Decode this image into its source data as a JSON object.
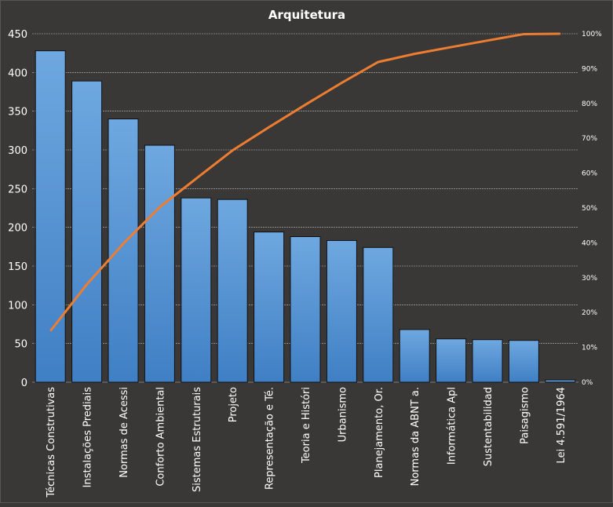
{
  "chart_data": {
    "type": "bar",
    "title": "Arquitetura",
    "categories": [
      "Técnicas Construtivas",
      "Instalações Prediais",
      "Normas de Acessi",
      "Conforto Ambiental",
      "Sistemas Estruturais",
      "Projeto",
      "Representação e Té.",
      "Teoria e Históri",
      "Urbanismo",
      "Planejamento, Or.",
      "Normas da ABNT a.",
      "Informática Apl",
      "Sustentabilidad",
      "Paisagismo",
      "Lei 4.591/1964"
    ],
    "values": [
      428,
      389,
      340,
      306,
      238,
      236,
      194,
      188,
      183,
      174,
      68,
      56,
      55,
      54,
      3
    ],
    "line_series": {
      "name": "Cumulative %",
      "type": "line",
      "axis": "right"
    },
    "ylim": [
      0,
      450
    ],
    "yticks": [
      0,
      50,
      100,
      150,
      200,
      250,
      300,
      350,
      400,
      450
    ],
    "y2lim": [
      0,
      100
    ],
    "y2ticks": [
      "0%",
      "10%",
      "20%",
      "30%",
      "40%",
      "50%",
      "60%",
      "70%",
      "80%",
      "90%",
      "100%"
    ],
    "grid": true,
    "colors": {
      "bar": "#5b9bd5",
      "bar_top": "#6fa8e0",
      "line": "#ed7d31",
      "grid": "#bfbfbf"
    }
  }
}
